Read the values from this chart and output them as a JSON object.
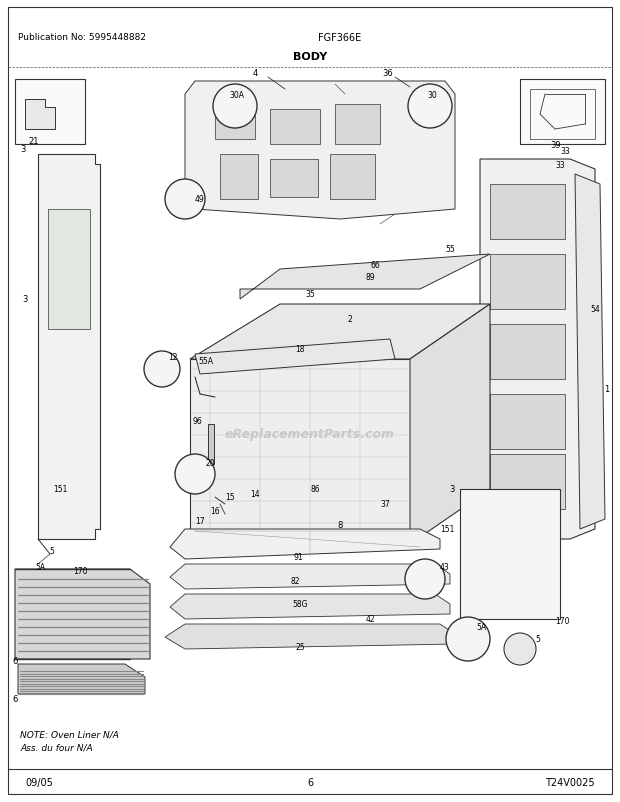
{
  "title": "BODY",
  "subtitle": "FGF366E",
  "pub_no": "Publication No: 5995448882",
  "date": "09/05",
  "page": "6",
  "diagram_id": "T24V0025",
  "note_line1": "NOTE: Oven Liner N/A",
  "note_line2": "Ass. du four N/A",
  "watermark": "eReplacementParts.com",
  "bg_color": "#ffffff",
  "border_color": "#000000",
  "text_color": "#000000",
  "fig_width": 6.2,
  "fig_height": 8.03,
  "dpi": 100
}
